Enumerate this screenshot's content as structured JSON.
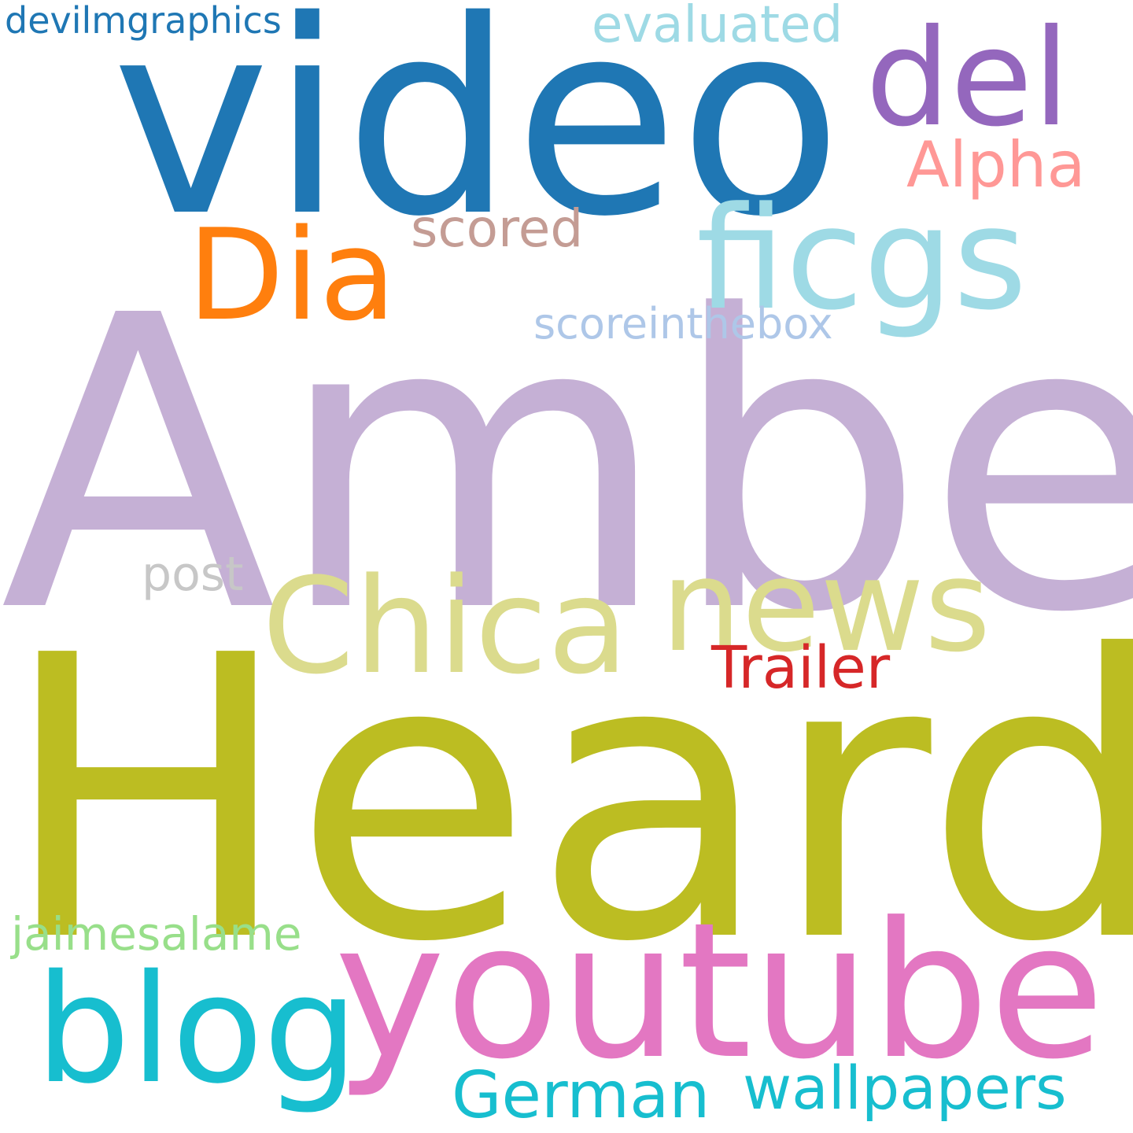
{
  "words": {
    "amber": {
      "text": "Amber",
      "color": "#c5b0d5"
    },
    "heard": {
      "text": "Heard",
      "color": "#bcbd22"
    },
    "video": {
      "text": "video",
      "color": "#1f77b4"
    },
    "youtube": {
      "text": "youtube",
      "color": "#e377c2"
    },
    "blog": {
      "text": "blog",
      "color": "#17becf"
    },
    "del": {
      "text": "del",
      "color": "#9467bd"
    },
    "ficgs": {
      "text": "ficgs",
      "color": "#9edae5"
    },
    "dia": {
      "text": "Dia",
      "color": "#ff7f0e"
    },
    "chica": {
      "text": "Chica",
      "color": "#dbdb8d"
    },
    "news": {
      "text": "news",
      "color": "#dbdb8d"
    },
    "alpha": {
      "text": "Alpha",
      "color": "#ff9896"
    },
    "scored": {
      "text": "scored",
      "color": "#c49c94"
    },
    "evaluated": {
      "text": "evaluated",
      "color": "#9edae5"
    },
    "scoreinthebox": {
      "text": "scoreinthebox",
      "color": "#aec7e8"
    },
    "devilmgraphics": {
      "text": "devilmgraphics",
      "color": "#1f77b4"
    },
    "post": {
      "text": "post",
      "color": "#c7c7c7"
    },
    "trailer": {
      "text": "Trailer",
      "color": "#d62728"
    },
    "jaimesalame": {
      "text": "jaimesalame",
      "color": "#98df8a"
    },
    "german": {
      "text": "German",
      "color": "#17becf"
    },
    "wallpapers": {
      "text": "wallpapers",
      "color": "#17becf"
    }
  },
  "background": "#ffffff"
}
